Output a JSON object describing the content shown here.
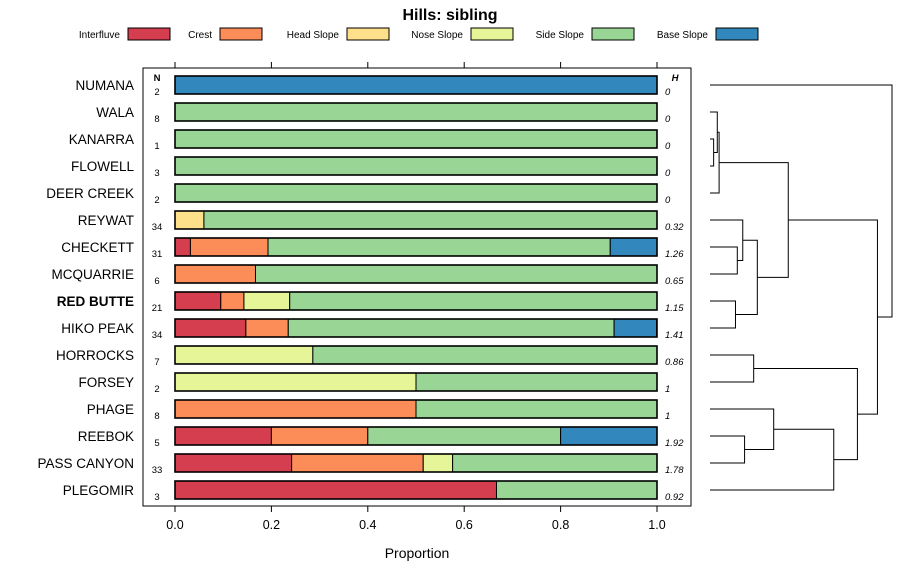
{
  "chart_data": {
    "type": "bar",
    "orientation": "horizontal",
    "stacked": true,
    "title": "Hills: sibling",
    "xlabel": "Proportion",
    "ylabel": "",
    "xlim": [
      0,
      1
    ],
    "x_ticks": [
      "0.0",
      "0.2",
      "0.4",
      "0.6",
      "0.8",
      "1.0"
    ],
    "x_tick_values": [
      0,
      0.2,
      0.4,
      0.6,
      0.8,
      1.0
    ],
    "n_header": "N",
    "h_header": "H",
    "legend_position": "top",
    "series": [
      {
        "name": "Interfluve",
        "color": "#d53e4f"
      },
      {
        "name": "Crest",
        "color": "#fc8d59"
      },
      {
        "name": "Head Slope",
        "color": "#fee08b"
      },
      {
        "name": "Nose Slope",
        "color": "#e6f598"
      },
      {
        "name": "Side Slope",
        "color": "#99d594"
      },
      {
        "name": "Base Slope",
        "color": "#3288bd"
      }
    ],
    "rows": [
      {
        "name": "NUMANA",
        "n": "2",
        "h": "0",
        "bold": false,
        "values": [
          0,
          0,
          0,
          0,
          0,
          1.0
        ]
      },
      {
        "name": "WALA",
        "n": "8",
        "h": "0",
        "bold": false,
        "values": [
          0,
          0,
          0,
          0,
          1.0,
          0
        ]
      },
      {
        "name": "KANARRA",
        "n": "1",
        "h": "0",
        "bold": false,
        "values": [
          0,
          0,
          0,
          0,
          1.0,
          0
        ]
      },
      {
        "name": "FLOWELL",
        "n": "3",
        "h": "0",
        "bold": false,
        "values": [
          0,
          0,
          0,
          0,
          1.0,
          0
        ]
      },
      {
        "name": "DEER CREEK",
        "n": "2",
        "h": "0",
        "bold": false,
        "values": [
          0,
          0,
          0,
          0,
          1.0,
          0
        ]
      },
      {
        "name": "REYWAT",
        "n": "34",
        "h": "0.32",
        "bold": false,
        "values": [
          0,
          0,
          0.06,
          0,
          0.94,
          0
        ]
      },
      {
        "name": "CHECKETT",
        "n": "31",
        "h": "1.26",
        "bold": false,
        "values": [
          0.032,
          0.161,
          0,
          0,
          0.71,
          0.097
        ]
      },
      {
        "name": "MCQUARRIE",
        "n": "6",
        "h": "0.65",
        "bold": false,
        "values": [
          0,
          0.167,
          0,
          0,
          0.833,
          0
        ]
      },
      {
        "name": "RED BUTTE",
        "n": "21",
        "h": "1.15",
        "bold": true,
        "values": [
          0.095,
          0.048,
          0,
          0.095,
          0.762,
          0
        ]
      },
      {
        "name": "HIKO PEAK",
        "n": "34",
        "h": "1.41",
        "bold": false,
        "values": [
          0.147,
          0.088,
          0,
          0,
          0.676,
          0.088
        ]
      },
      {
        "name": "HORROCKS",
        "n": "7",
        "h": "0.86",
        "bold": false,
        "values": [
          0,
          0,
          0,
          0.286,
          0.714,
          0
        ]
      },
      {
        "name": "FORSEY",
        "n": "2",
        "h": "1",
        "bold": false,
        "values": [
          0,
          0,
          0,
          0.5,
          0.5,
          0
        ]
      },
      {
        "name": "PHAGE",
        "n": "8",
        "h": "1",
        "bold": false,
        "values": [
          0,
          0.5,
          0,
          0,
          0.5,
          0
        ]
      },
      {
        "name": "REEBOK",
        "n": "5",
        "h": "1.92",
        "bold": false,
        "values": [
          0.2,
          0.2,
          0,
          0,
          0.4,
          0.2
        ]
      },
      {
        "name": "PASS CANYON",
        "n": "33",
        "h": "1.78",
        "bold": false,
        "values": [
          0.242,
          0.273,
          0,
          0.061,
          0.424,
          0
        ]
      },
      {
        "name": "PLEGOMIR",
        "n": "3",
        "h": "0.92",
        "bold": false,
        "values": [
          0.667,
          0,
          0,
          0,
          0.333,
          0
        ]
      }
    ],
    "dendrogram": {
      "leaves": [
        "NUMANA",
        "WALA",
        "KANARRA",
        "FLOWELL",
        "DEER CREEK",
        "REYWAT",
        "CHECKETT",
        "MCQUARRIE",
        "RED BUTTE",
        "HIKO PEAK",
        "HORROCKS",
        "FORSEY",
        "PHAGE",
        "REEBOK",
        "PASS CANYON",
        "PLEGOMIR"
      ],
      "merges": [
        {
          "id": "a",
          "children": [
            2,
            3
          ],
          "height": 0.02
        },
        {
          "id": "b",
          "children": [
            1,
            "a"
          ],
          "height": 0.04
        },
        {
          "id": "c",
          "children": [
            "b",
            4
          ],
          "height": 0.05
        },
        {
          "id": "d",
          "children": [
            6,
            7
          ],
          "height": 0.15
        },
        {
          "id": "e",
          "children": [
            "d",
            5
          ],
          "height": 0.18
        },
        {
          "id": "f",
          "children": [
            8,
            9
          ],
          "height": 0.14
        },
        {
          "id": "g",
          "children": [
            "e",
            "f"
          ],
          "height": 0.26
        },
        {
          "id": "h",
          "children": [
            "c",
            "g"
          ],
          "height": 0.43
        },
        {
          "id": "i",
          "children": [
            10,
            11
          ],
          "height": 0.24
        },
        {
          "id": "j",
          "children": [
            13,
            14
          ],
          "height": 0.19
        },
        {
          "id": "k",
          "children": [
            12,
            "j"
          ],
          "height": 0.35
        },
        {
          "id": "l",
          "children": [
            "k",
            15
          ],
          "height": 0.68
        },
        {
          "id": "m",
          "children": [
            "i",
            "l"
          ],
          "height": 0.81
        },
        {
          "id": "n",
          "children": [
            "h",
            "m"
          ],
          "height": 0.92
        },
        {
          "id": "o",
          "children": [
            0,
            "n"
          ],
          "height": 1.0
        }
      ]
    }
  }
}
